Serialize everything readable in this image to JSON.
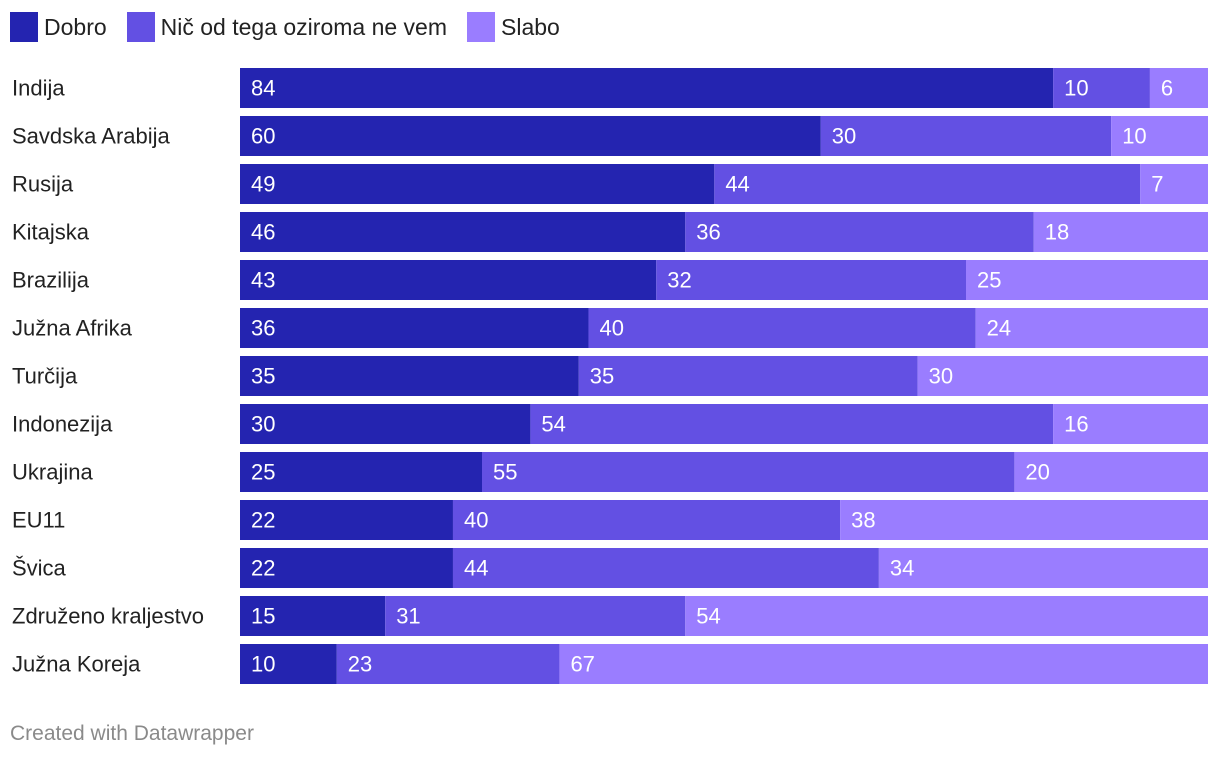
{
  "chart_data": {
    "type": "bar",
    "orientation": "horizontal",
    "stacked": true,
    "percent": true,
    "categories": [
      "Indija",
      "Savdska Arabija",
      "Rusija",
      "Kitajska",
      "Brazilija",
      "Južna Afrika",
      "Turčija",
      "Indonezija",
      "Ukrajina",
      "EU11",
      "Švica",
      "Združeno kraljestvo",
      "Južna Koreja"
    ],
    "series": [
      {
        "name": "Dobro",
        "color": "#2424b0",
        "values": [
          84,
          60,
          49,
          46,
          43,
          36,
          35,
          30,
          25,
          22,
          22,
          15,
          10
        ]
      },
      {
        "name": "Nič od tega oziroma ne vem",
        "color": "#6350e3",
        "values": [
          10,
          30,
          44,
          36,
          32,
          40,
          35,
          54,
          55,
          40,
          44,
          31,
          23
        ]
      },
      {
        "name": "Slabo",
        "color": "#9a7dff",
        "values": [
          6,
          10,
          7,
          18,
          25,
          24,
          30,
          16,
          20,
          38,
          34,
          54,
          67
        ]
      }
    ],
    "xlim": [
      0,
      100
    ],
    "legend_position": "top-left"
  },
  "footer": {
    "credit": "Created with Datawrapper"
  }
}
